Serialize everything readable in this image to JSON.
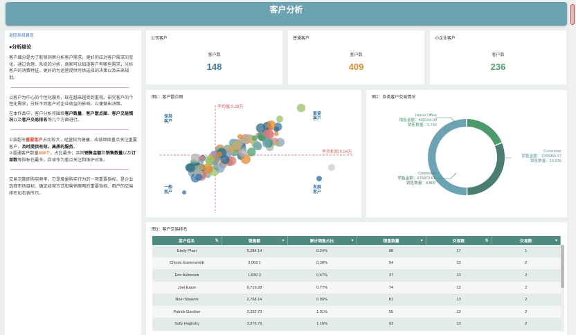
{
  "header": {
    "title": "客户分析"
  },
  "left": {
    "link": "返回系统首页",
    "section_title": "●分析结论",
    "para1": "客户细分是为了能够洞察分析客户需求，更好的应对客户需求的变化。通过合理、系统的分析，商家可以知道客户有哪些需求，分析客户的消费特征，更好的为运营提供可供选择的决策以及未来规划。",
    "para2": "以客户为中心的个性化服务，现在越来越受到重视。研究客户的个性化需求，分析不同客户对企业收益的影响，以便做出决策。",
    "para3_prefix": "在本作品中，客户分析将围绕",
    "para3_b1": "客户数量",
    "para3_sep1": "、",
    "para3_b2": "客户散点图",
    "para3_sep2": "、",
    "para3_b3": "客户交易情况",
    "para3_mid": "以及",
    "para3_b4": "客户交易排名",
    "para3_suffix": "等几个方面进行。",
    "point1_a": "①该超市",
    "point1_hl": "重要客户",
    "point1_b": "占比较大，经营较为健康，应该继续重点关注重要客户，",
    "point1_bold": "及时提供有效、高质的服务",
    "point1_end": "。",
    "point2_a": "②普通客户数量",
    "point2_hl": "409个",
    "point2_b": "，占比最多；且同",
    "point2_bold1": "销售金额",
    "point2_c": "和",
    "point2_bold2": "销售数量",
    "point2_d": "以及",
    "point2_bold3": "订单数",
    "point2_e": "等指标也最多，应该作为重点关注和维护对象。",
    "para4": "交易次数即购买频率，它是度量购买行为的一项重要指标，是企业选择市场目标、确定经营方式和营销策略的重要指标。用户的交易排名如右表所示。"
  },
  "kpis": [
    {
      "title": "公司客户",
      "label": "客户数",
      "value": "148",
      "color": "#3b78a8"
    },
    {
      "title": "普通客户",
      "label": "客户数",
      "value": "409",
      "color": "#e58a2e"
    },
    {
      "title": "小企业客户",
      "label": "客户数",
      "value": "236",
      "color": "#4fa06e"
    }
  ],
  "scatter": {
    "title": "图1：客户散点图",
    "avg_x_label": "平均值:0.28万",
    "avg_y_label": "平均利润:0.04万",
    "q_top_left": "保持客户",
    "q_top_right": "重要客户",
    "q_bottom_left": "一般客户",
    "q_bottom_right": "发展客户"
  },
  "donut": {
    "title": "图2：各类客户交易情况",
    "home": {
      "name": "Home Office",
      "amount": "销售金额：409104.00",
      "qty": "销售数量：5,742",
      "color": "#4c9a6a"
    },
    "corporate": {
      "name": "Corporate",
      "amount": "销售金额：676973.61",
      "qty": "销售数量：9,800",
      "color": "#4a7e72"
    },
    "consumer": {
      "name": "Consumer",
      "amount": "销售金额：1095955.17",
      "qty": "销售数量：16,635",
      "color": "#6ba3b3"
    },
    "shares": [
      0.188,
      0.31,
      0.502
    ]
  },
  "table": {
    "title": "图3：客户交易排名",
    "headers": [
      "客户姓名",
      "销售额",
      "累计销售占比",
      "销售数量",
      "交易数",
      "交易数"
    ],
    "rows": [
      [
        "Emily Phan",
        "5,284.14",
        "0.24%",
        "88",
        "17",
        "1"
      ],
      [
        "Chloris Kastensmidt",
        "3,063.1",
        "0.38%",
        "94",
        "13",
        "2"
      ],
      [
        "Erin Ashbrook",
        "1,830.3",
        "0.47%",
        "37",
        "13",
        "2"
      ],
      [
        "Joel Eaton",
        "6,719.28",
        "0.77%",
        "74",
        "13",
        "2"
      ],
      [
        "Noel Staavos",
        "2,768.14",
        "0.90%",
        "81",
        "13",
        "2"
      ],
      [
        "Patrick Gardner",
        "2,332.73",
        "1.01%",
        "55",
        "13",
        "2"
      ],
      [
        "Sally Hughsby",
        "3,376.79",
        "1.16%",
        "93",
        "13",
        "2"
      ]
    ]
  }
}
